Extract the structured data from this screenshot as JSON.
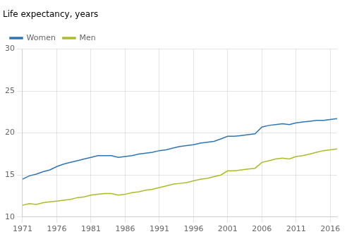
{
  "chart_data": {
    "type": "line",
    "title": "Life expectancy, years",
    "x": [
      1971,
      1972,
      1973,
      1974,
      1975,
      1976,
      1977,
      1978,
      1979,
      1980,
      1981,
      1982,
      1983,
      1984,
      1985,
      1986,
      1987,
      1988,
      1989,
      1990,
      1991,
      1992,
      1993,
      1994,
      1995,
      1996,
      1997,
      1998,
      1999,
      2000,
      2001,
      2002,
      2003,
      2004,
      2005,
      2006,
      2007,
      2008,
      2009,
      2010,
      2011,
      2012,
      2013,
      2014,
      2015,
      2016,
      2017
    ],
    "series": [
      {
        "name": "Women",
        "color": "#2E75B6",
        "values": [
          14.5,
          14.9,
          15.1,
          15.4,
          15.6,
          16.0,
          16.3,
          16.5,
          16.7,
          16.9,
          17.1,
          17.3,
          17.3,
          17.3,
          17.1,
          17.2,
          17.3,
          17.5,
          17.6,
          17.7,
          17.9,
          18.0,
          18.2,
          18.4,
          18.5,
          18.6,
          18.8,
          18.9,
          19.0,
          19.3,
          19.6,
          19.6,
          19.7,
          19.8,
          19.9,
          20.7,
          20.9,
          21.0,
          21.1,
          21.0,
          21.2,
          21.3,
          21.4,
          21.5,
          21.5,
          21.6,
          21.7
        ]
      },
      {
        "name": "Men",
        "color": "#ADBB2A",
        "values": [
          11.4,
          11.6,
          11.5,
          11.7,
          11.8,
          11.9,
          12.0,
          12.1,
          12.3,
          12.4,
          12.6,
          12.7,
          12.8,
          12.8,
          12.6,
          12.7,
          12.9,
          13.0,
          13.2,
          13.3,
          13.5,
          13.7,
          13.9,
          14.0,
          14.1,
          14.3,
          14.5,
          14.6,
          14.8,
          15.0,
          15.5,
          15.5,
          15.6,
          15.7,
          15.8,
          16.5,
          16.7,
          16.9,
          17.0,
          16.9,
          17.2,
          17.3,
          17.5,
          17.7,
          17.9,
          18.0,
          18.1
        ]
      }
    ],
    "xlim": [
      1971,
      2017
    ],
    "xticks": [
      1971,
      1976,
      1981,
      1986,
      1991,
      1996,
      2001,
      2006,
      2011,
      2016
    ],
    "ylim": [
      10,
      30
    ],
    "yticks": [
      10,
      15,
      20,
      25,
      30
    ],
    "grid": true,
    "legend": "upper left"
  }
}
